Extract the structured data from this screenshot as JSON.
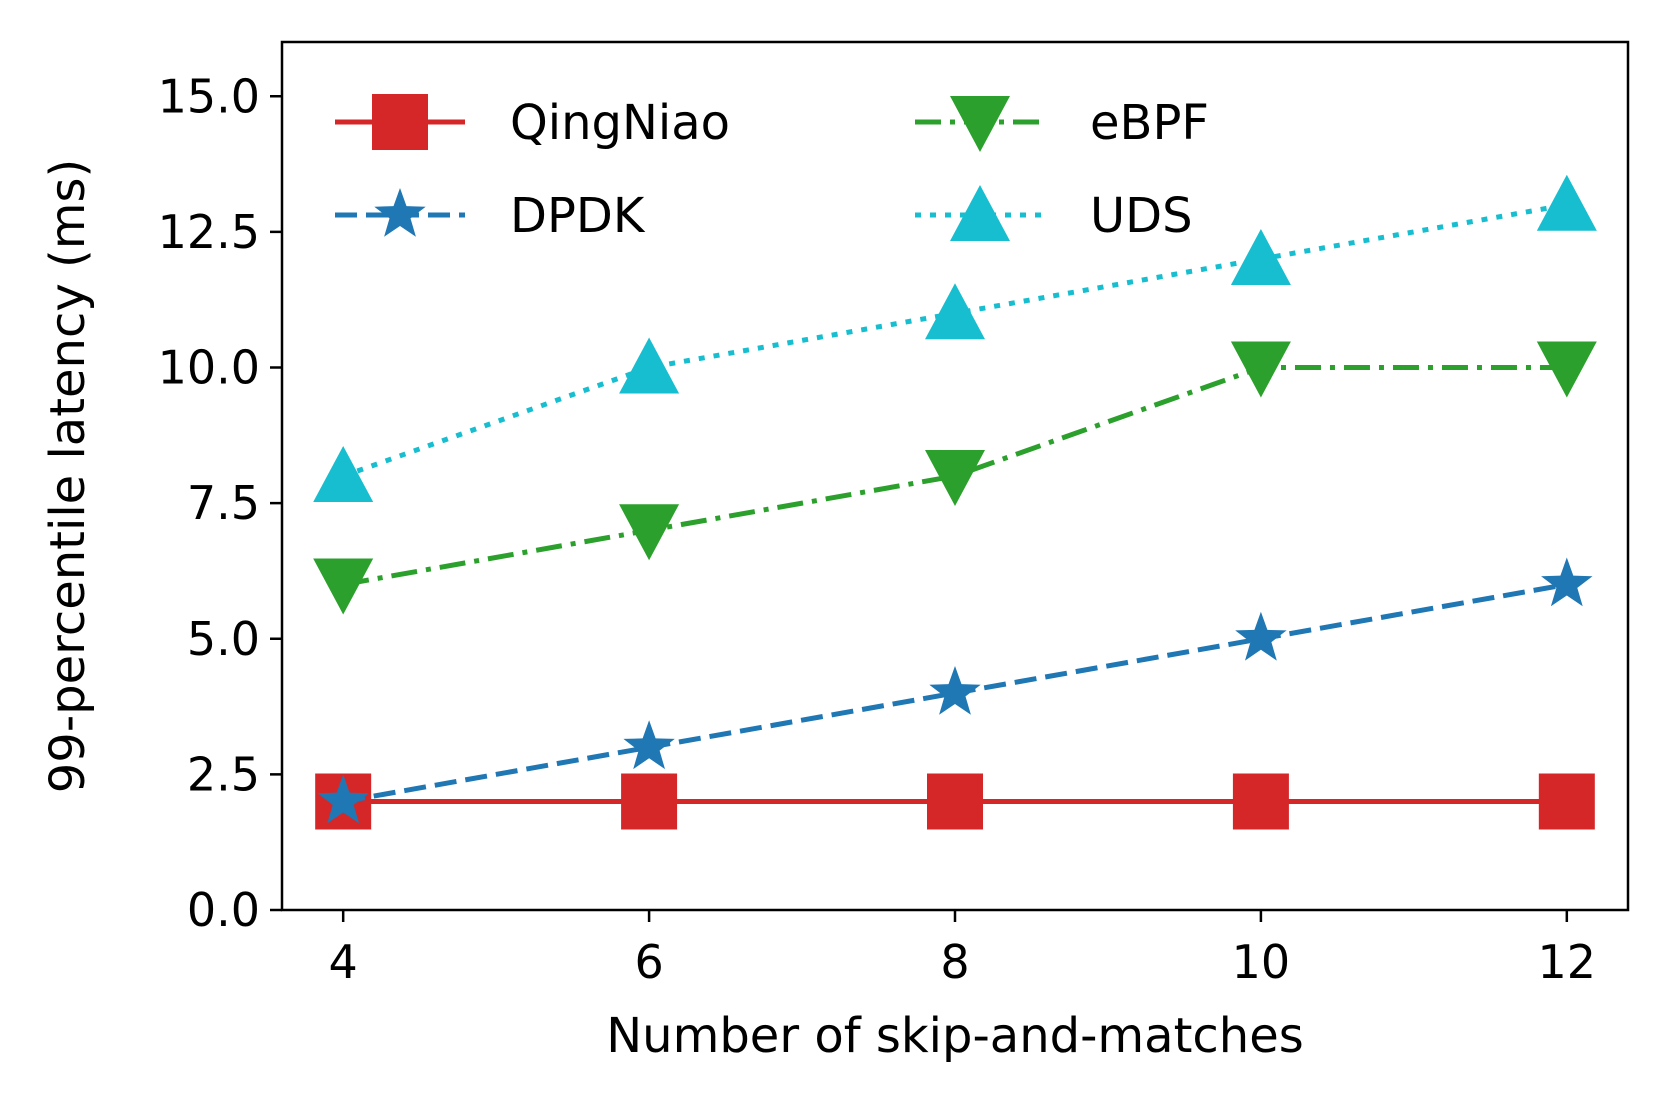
{
  "chart_data": {
    "type": "line",
    "title": "",
    "xlabel": "Number of skip-and-matches",
    "ylabel": "99-percentile latency (ms)",
    "x": [
      4,
      6,
      8,
      10,
      12
    ],
    "xticks": [
      "4",
      "6",
      "8",
      "10",
      "12"
    ],
    "xlim": [
      3.6,
      12.4
    ],
    "ylim": [
      0,
      16
    ],
    "yticks": [
      "0.0",
      "2.5",
      "5.0",
      "7.5",
      "10.0",
      "12.5",
      "15.0"
    ],
    "legend_position": "top-left, two columns",
    "series": [
      {
        "name": "QingNiao",
        "values": [
          2,
          2,
          2,
          2,
          2
        ],
        "color": "#d62728",
        "linestyle": "solid",
        "marker": "square"
      },
      {
        "name": "DPDK",
        "values": [
          2,
          3,
          4,
          5,
          6
        ],
        "color": "#1f77b4",
        "linestyle": "dashed",
        "marker": "star"
      },
      {
        "name": "eBPF",
        "values": [
          6,
          7,
          8,
          10,
          10
        ],
        "color": "#2ca02c",
        "linestyle": "dashdot",
        "marker": "triangle-down"
      },
      {
        "name": "UDS",
        "values": [
          8,
          10,
          11,
          12,
          13
        ],
        "color": "#17becf",
        "linestyle": "dotted",
        "marker": "triangle-up"
      }
    ]
  }
}
